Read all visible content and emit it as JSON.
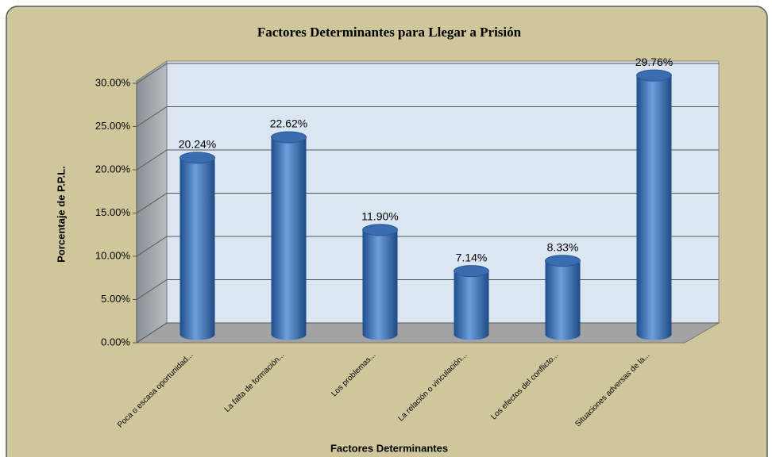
{
  "chart_data": {
    "type": "bar",
    "title": "Factores  Determinantes para Llegar  a Prisión",
    "x_label": "Factores Determinantes",
    "y_label": "Porcentaje de P.P.L.",
    "categories": [
      "Poca o escasa oportunidad...",
      "La falta de formación...",
      "Los problemas...",
      "La relación o vinculación...",
      "Los efectos del conflicto...",
      "Situaciones adversas de la..."
    ],
    "values": [
      20.24,
      22.62,
      11.9,
      7.14,
      8.33,
      29.76
    ],
    "value_labels": [
      "20.24%",
      "22.62%",
      "11.90%",
      "7.14%",
      "8.33%",
      "29.76%"
    ],
    "color": "#4a7ebf",
    "ylim": [
      0,
      30
    ],
    "yticks": [
      {
        "value": 0,
        "label": "0.00%"
      },
      {
        "value": 5,
        "label": "5.00%"
      },
      {
        "value": 10,
        "label": "10.00%"
      },
      {
        "value": 15,
        "label": "15.00%"
      },
      {
        "value": 20,
        "label": "20.00%"
      },
      {
        "value": 25,
        "label": "25.00%"
      },
      {
        "value": 30,
        "label": "30.00%"
      }
    ],
    "grid": true
  }
}
